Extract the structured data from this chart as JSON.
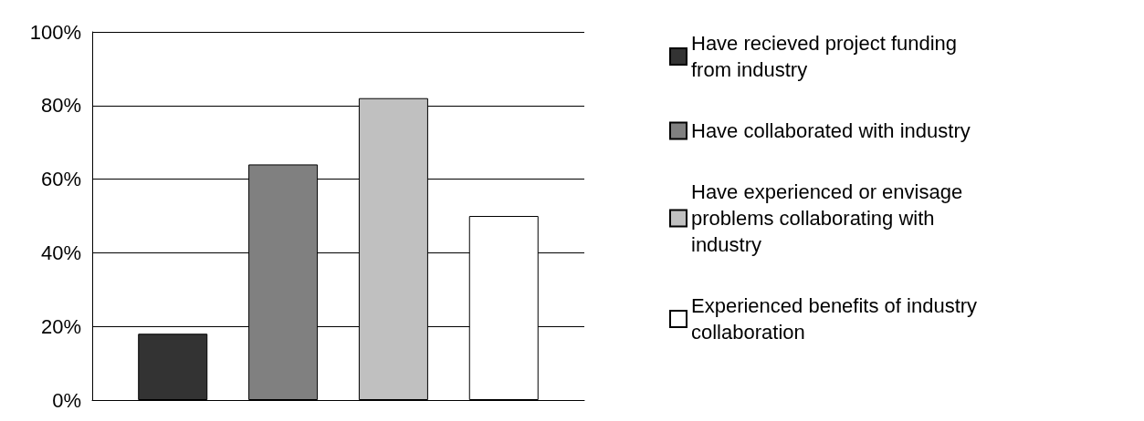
{
  "chart_data": {
    "type": "bar",
    "categories": [
      null
    ],
    "series": [
      {
        "name": "Have recieved project funding from industry",
        "color": "#333333",
        "values": [
          18
        ]
      },
      {
        "name": "Have collaborated with industry",
        "color": "#808080",
        "values": [
          64
        ]
      },
      {
        "name": "Have experienced or envisage problems collaborating with industry",
        "color": "#c0c0c0",
        "values": [
          82
        ]
      },
      {
        "name": "Experienced benefits of industry collaboration",
        "color": "#ffffff",
        "values": [
          50
        ]
      }
    ],
    "ylim": [
      0,
      100
    ],
    "yticks": [
      {
        "value": 0,
        "label": "0%"
      },
      {
        "value": 20,
        "label": "20%"
      },
      {
        "value": 40,
        "label": "40%"
      },
      {
        "value": 60,
        "label": "60%"
      },
      {
        "value": 80,
        "label": "80%"
      },
      {
        "value": 100,
        "label": "100%"
      }
    ],
    "grid": "y",
    "legend": "right"
  }
}
